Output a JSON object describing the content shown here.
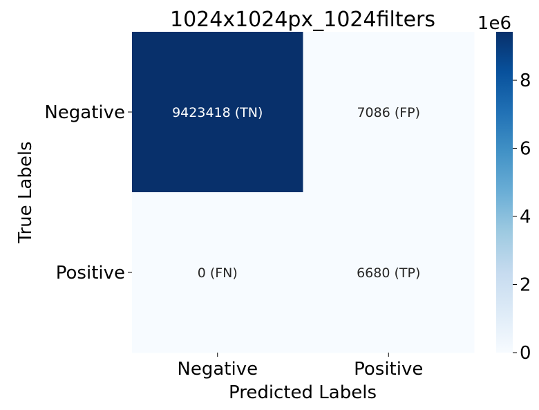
{
  "chart_data": {
    "type": "heatmap",
    "title": "1024x1024px_1024filters",
    "xlabel": "Predicted Labels",
    "ylabel": "True Labels",
    "x_categories": [
      "Negative",
      "Positive"
    ],
    "y_categories": [
      "Negative",
      "Positive"
    ],
    "values": [
      [
        9423418,
        7086
      ],
      [
        0,
        6680
      ]
    ],
    "annotations": [
      [
        "9423418 (TN)",
        "7086 (FP)"
      ],
      [
        "0 (FN)",
        "6680 (TP)"
      ]
    ],
    "colormap": "Blues",
    "colorbar": {
      "range": [
        0,
        9423418
      ],
      "ticks": [
        0,
        2,
        4,
        6,
        8
      ],
      "tick_labels": [
        "0",
        "2",
        "4",
        "6",
        "8"
      ],
      "multiplier_label": "1e6"
    },
    "colors": {
      "low": "#f7fbff",
      "high": "#08306b"
    }
  }
}
